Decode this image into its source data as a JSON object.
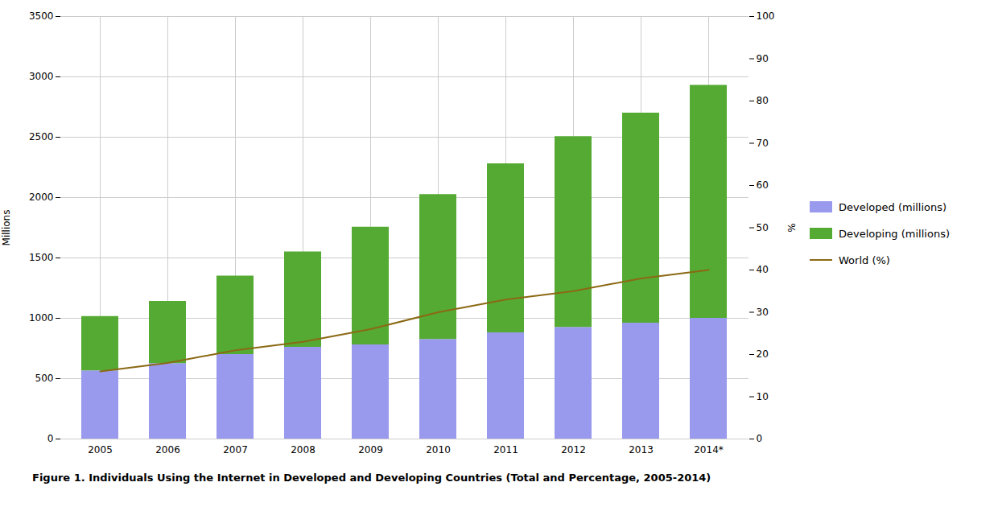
{
  "chart_data": {
    "type": "bar",
    "stacked": true,
    "caption": "Figure 1. Individuals Using the Internet in Developed and Developing Countries (Total and Percentage, 2005-2014)",
    "categories": [
      "2005",
      "2006",
      "2007",
      "2008",
      "2009",
      "2010",
      "2011",
      "2012",
      "2013",
      "2014*"
    ],
    "series": [
      {
        "name": "Developed (millions)",
        "color": "#9999ee",
        "values": [
          565,
          625,
          700,
          760,
          780,
          825,
          880,
          925,
          960,
          1000
        ]
      },
      {
        "name": "Developing (millions)",
        "color": "#55aa33",
        "values": [
          450,
          515,
          650,
          790,
          975,
          1200,
          1400,
          1580,
          1740,
          1930
        ]
      },
      {
        "name": "World (%)",
        "type": "line",
        "axis": "y2",
        "color": "#8B6914",
        "values": [
          16,
          18,
          21,
          23,
          26,
          30,
          33,
          35,
          38,
          40
        ]
      }
    ],
    "ylabel": "Millions",
    "y2label": "%",
    "ylim": [
      0,
      3500
    ],
    "yticks": [
      0,
      500,
      1000,
      1500,
      2000,
      2500,
      3000,
      3500
    ],
    "y2lim": [
      0,
      100
    ],
    "y2ticks": [
      0,
      10,
      20,
      30,
      40,
      50,
      60,
      70,
      80,
      90,
      100
    ],
    "grid": true,
    "legend": "right"
  }
}
